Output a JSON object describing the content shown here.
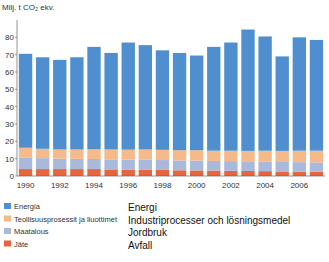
{
  "chart_data": {
    "type": "bar",
    "stacked": true,
    "y_label": "Milj. t CO₂ ekv.",
    "categories": [
      "1990",
      null,
      "1992",
      null,
      "1994",
      null,
      "1996",
      null,
      "1998",
      null,
      "2000",
      null,
      "2002",
      null,
      "2004",
      null,
      "2006",
      null
    ],
    "series": [
      {
        "name": "Jäte",
        "color": "#e8643c",
        "values": [
          4,
          4,
          4,
          4,
          4,
          3.8,
          3.7,
          3.6,
          3.5,
          3.3,
          3.2,
          3.1,
          3,
          2.9,
          2.8,
          2.6,
          2.5,
          2.4
        ]
      },
      {
        "name": "Maatalous",
        "color": "#a9b9dc",
        "values": [
          6.5,
          6.3,
          6.0,
          5.9,
          5.8,
          5.8,
          5.8,
          5.8,
          5.7,
          5.7,
          5.7,
          5.6,
          5.6,
          5.6,
          5.6,
          5.5,
          5.5,
          5.5
        ]
      },
      {
        "name": "Teollisuusprosessit ja liuottimet",
        "color": "#f5b98a",
        "values": [
          5.8,
          5.4,
          5.3,
          5.4,
          5.6,
          5.7,
          5.7,
          5.9,
          5.9,
          5.9,
          6.0,
          5.9,
          6.0,
          6.0,
          6.2,
          6.4,
          6.6,
          6.7
        ]
      },
      {
        "name": "Energia",
        "color": "#4f8fcf",
        "values": [
          54.2,
          52.8,
          51.7,
          53.2,
          59.1,
          55.7,
          61.8,
          60.2,
          57.4,
          56.1,
          54.6,
          59.9,
          62.4,
          70.0,
          65.9,
          54.5,
          65.4,
          63.9
        ]
      }
    ],
    "annotations": [
      "Avfall",
      "Jordbruk",
      "Industriprocesser och lösningsmedel",
      "Energi"
    ],
    "ylim": [
      0,
      90
    ],
    "yticks": [
      0,
      10,
      20,
      30,
      40,
      50,
      60,
      70,
      80
    ],
    "grid": false
  }
}
